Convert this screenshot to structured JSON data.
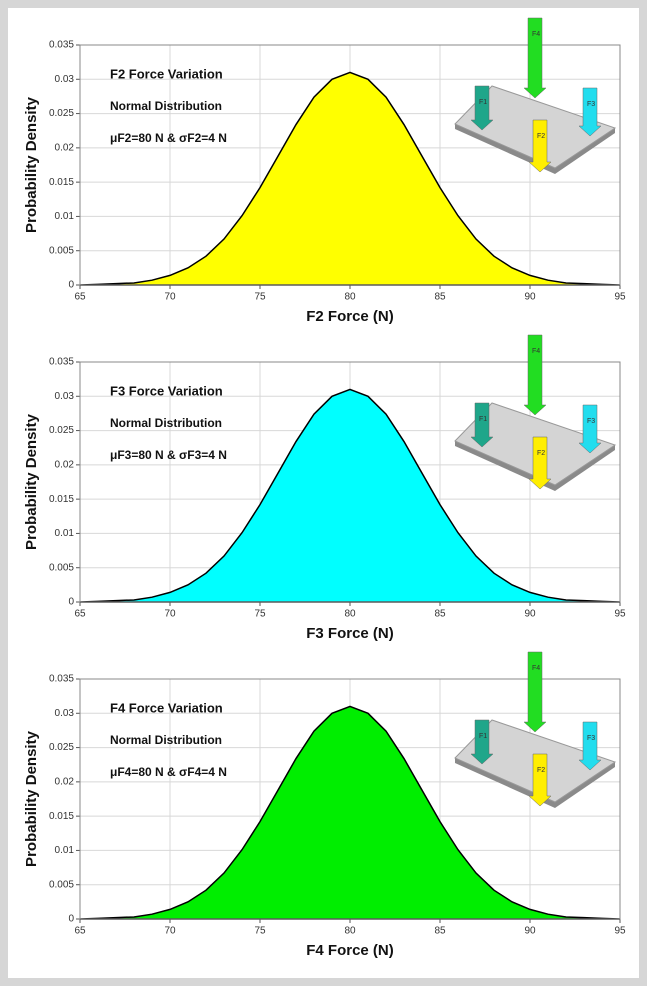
{
  "chart_data": [
    {
      "type": "area",
      "annotations": [
        "F2 Force Variation",
        "Normal Distribution",
        "μF2=80 N & σF2=4 N"
      ],
      "xlabel": "F2 Force (N)",
      "ylabel": "Probability Density",
      "color": "#ffff00",
      "x": [
        65,
        66,
        67,
        68,
        69,
        70,
        71,
        72,
        73,
        74,
        75,
        76,
        77,
        78,
        79,
        80,
        81,
        82,
        83,
        84,
        85,
        86,
        87,
        88,
        89,
        90,
        91,
        92,
        93,
        94,
        95
      ],
      "values": [
        0,
        0.0001,
        0.0002,
        0.0003,
        0.0007,
        0.0014,
        0.0025,
        0.0042,
        0.0067,
        0.0101,
        0.0142,
        0.0188,
        0.0234,
        0.0274,
        0.03,
        0.031,
        0.03,
        0.0274,
        0.0234,
        0.0188,
        0.0142,
        0.0101,
        0.0067,
        0.0042,
        0.0025,
        0.0014,
        0.0007,
        0.0003,
        0.0002,
        0.0001,
        0
      ],
      "xlim": [
        65,
        95
      ],
      "ylim": [
        0,
        0.035
      ],
      "xticks": [
        65,
        70,
        75,
        80,
        85,
        90,
        95
      ],
      "yticks": [
        0,
        0.005,
        0.01,
        0.015,
        0.02,
        0.025,
        0.03,
        0.035
      ],
      "grid": true,
      "inset_labels": [
        "F1",
        "F2",
        "F3",
        "F4"
      ]
    },
    {
      "type": "area",
      "annotations": [
        "F3 Force Variation",
        "Normal Distribution",
        "μF3=80 N & σF3=4 N"
      ],
      "xlabel": "F3 Force (N)",
      "ylabel": "Probability Density",
      "color": "#00ffff",
      "x": [
        65,
        66,
        67,
        68,
        69,
        70,
        71,
        72,
        73,
        74,
        75,
        76,
        77,
        78,
        79,
        80,
        81,
        82,
        83,
        84,
        85,
        86,
        87,
        88,
        89,
        90,
        91,
        92,
        93,
        94,
        95
      ],
      "values": [
        0,
        0.0001,
        0.0002,
        0.0003,
        0.0007,
        0.0014,
        0.0025,
        0.0042,
        0.0067,
        0.0101,
        0.0142,
        0.0188,
        0.0234,
        0.0274,
        0.03,
        0.031,
        0.03,
        0.0274,
        0.0234,
        0.0188,
        0.0142,
        0.0101,
        0.0067,
        0.0042,
        0.0025,
        0.0014,
        0.0007,
        0.0003,
        0.0002,
        0.0001,
        0
      ],
      "xlim": [
        65,
        95
      ],
      "ylim": [
        0,
        0.035
      ],
      "xticks": [
        65,
        70,
        75,
        80,
        85,
        90,
        95
      ],
      "yticks": [
        0,
        0.005,
        0.01,
        0.015,
        0.02,
        0.025,
        0.03,
        0.035
      ],
      "grid": true,
      "inset_labels": [
        "F1",
        "F2",
        "F3",
        "F4"
      ]
    },
    {
      "type": "area",
      "annotations": [
        "F4 Force Variation",
        "Normal Distribution",
        "μF4=80 N & σF4=4 N"
      ],
      "xlabel": "F4 Force (N)",
      "ylabel": "Probability Density",
      "color": "#00ee00",
      "x": [
        65,
        66,
        67,
        68,
        69,
        70,
        71,
        72,
        73,
        74,
        75,
        76,
        77,
        78,
        79,
        80,
        81,
        82,
        83,
        84,
        85,
        86,
        87,
        88,
        89,
        90,
        91,
        92,
        93,
        94,
        95
      ],
      "values": [
        0,
        0.0001,
        0.0002,
        0.0003,
        0.0007,
        0.0014,
        0.0025,
        0.0042,
        0.0067,
        0.0101,
        0.0142,
        0.0188,
        0.0234,
        0.0274,
        0.03,
        0.031,
        0.03,
        0.0274,
        0.0234,
        0.0188,
        0.0142,
        0.0101,
        0.0067,
        0.0042,
        0.0025,
        0.0014,
        0.0007,
        0.0003,
        0.0002,
        0.0001,
        0
      ],
      "xlim": [
        65,
        95
      ],
      "ylim": [
        0,
        0.035
      ],
      "xticks": [
        65,
        70,
        75,
        80,
        85,
        90,
        95
      ],
      "yticks": [
        0,
        0.005,
        0.01,
        0.015,
        0.02,
        0.025,
        0.03,
        0.035
      ],
      "grid": true,
      "inset_labels": [
        "F1",
        "F2",
        "F3",
        "F4"
      ]
    }
  ]
}
